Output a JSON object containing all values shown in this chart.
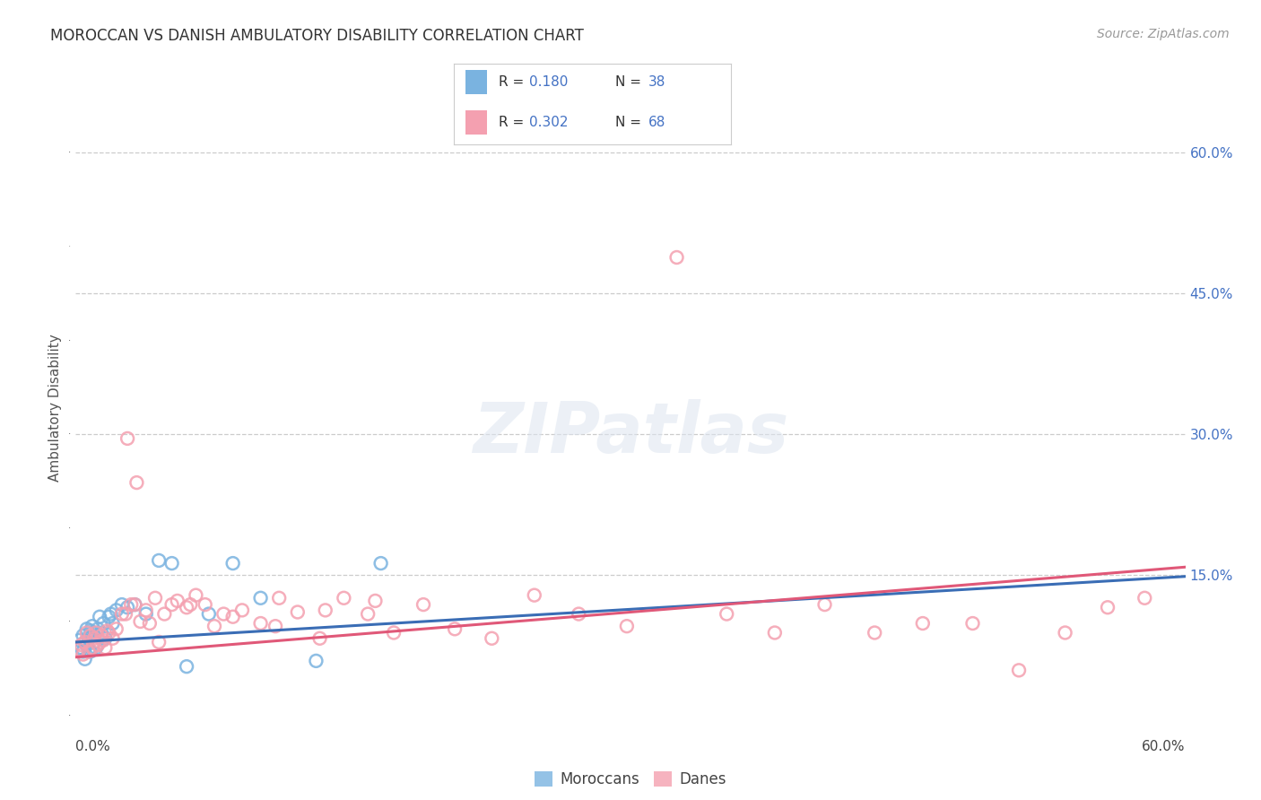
{
  "title": "MOROCCAN VS DANISH AMBULATORY DISABILITY CORRELATION CHART",
  "source": "Source: ZipAtlas.com",
  "ylabel": "Ambulatory Disability",
  "xlim": [
    0.0,
    0.6
  ],
  "ylim": [
    -0.005,
    0.66
  ],
  "moroccan_color": "#7ab3e0",
  "danish_color": "#f4a0b0",
  "moroccan_line_color": "#3a6db5",
  "danish_line_color": "#e05878",
  "moroccan_R": 0.18,
  "moroccan_N": 38,
  "danish_R": 0.302,
  "danish_N": 68,
  "background_color": "#ffffff",
  "grid_color": "#cccccc",
  "title_color": "#333333",
  "right_axis_color": "#4472c4",
  "moroccan_points_x": [
    0.002,
    0.003,
    0.004,
    0.004,
    0.005,
    0.005,
    0.006,
    0.006,
    0.007,
    0.007,
    0.008,
    0.008,
    0.009,
    0.009,
    0.01,
    0.01,
    0.011,
    0.012,
    0.013,
    0.014,
    0.015,
    0.016,
    0.018,
    0.019,
    0.02,
    0.022,
    0.025,
    0.028,
    0.032,
    0.038,
    0.045,
    0.052,
    0.06,
    0.072,
    0.085,
    0.1,
    0.13,
    0.165
  ],
  "moroccan_points_y": [
    0.08,
    0.072,
    0.068,
    0.085,
    0.06,
    0.078,
    0.075,
    0.092,
    0.082,
    0.07,
    0.09,
    0.068,
    0.088,
    0.095,
    0.078,
    0.085,
    0.072,
    0.092,
    0.105,
    0.088,
    0.098,
    0.082,
    0.105,
    0.108,
    0.098,
    0.112,
    0.118,
    0.115,
    0.118,
    0.108,
    0.165,
    0.162,
    0.052,
    0.108,
    0.162,
    0.125,
    0.058,
    0.162
  ],
  "danish_points_x": [
    0.002,
    0.003,
    0.004,
    0.005,
    0.006,
    0.007,
    0.008,
    0.009,
    0.01,
    0.011,
    0.012,
    0.013,
    0.014,
    0.015,
    0.016,
    0.017,
    0.018,
    0.02,
    0.022,
    0.025,
    0.028,
    0.03,
    0.033,
    0.035,
    0.038,
    0.04,
    0.043,
    0.048,
    0.052,
    0.055,
    0.06,
    0.065,
    0.07,
    0.075,
    0.08,
    0.09,
    0.1,
    0.11,
    0.12,
    0.132,
    0.145,
    0.158,
    0.172,
    0.188,
    0.205,
    0.225,
    0.248,
    0.272,
    0.298,
    0.325,
    0.352,
    0.378,
    0.405,
    0.432,
    0.458,
    0.485,
    0.51,
    0.535,
    0.558,
    0.578,
    0.032,
    0.027,
    0.045,
    0.062,
    0.085,
    0.108,
    0.135,
    0.162
  ],
  "danish_points_y": [
    0.07,
    0.075,
    0.065,
    0.078,
    0.088,
    0.068,
    0.085,
    0.072,
    0.082,
    0.088,
    0.075,
    0.078,
    0.085,
    0.08,
    0.072,
    0.09,
    0.088,
    0.082,
    0.092,
    0.108,
    0.295,
    0.118,
    0.248,
    0.1,
    0.112,
    0.098,
    0.125,
    0.108,
    0.118,
    0.122,
    0.115,
    0.128,
    0.118,
    0.095,
    0.108,
    0.112,
    0.098,
    0.125,
    0.11,
    0.082,
    0.125,
    0.108,
    0.088,
    0.118,
    0.092,
    0.082,
    0.128,
    0.108,
    0.095,
    0.488,
    0.108,
    0.088,
    0.118,
    0.088,
    0.098,
    0.098,
    0.048,
    0.088,
    0.115,
    0.125,
    0.118,
    0.108,
    0.078,
    0.118,
    0.105,
    0.095,
    0.112,
    0.122
  ],
  "moroccan_line_y_start": 0.078,
  "moroccan_line_y_end": 0.148,
  "danish_line_y_start": 0.062,
  "danish_line_y_end": 0.158,
  "dashed_line_y": 0.148,
  "marker_size": 100,
  "line_width": 2.2
}
